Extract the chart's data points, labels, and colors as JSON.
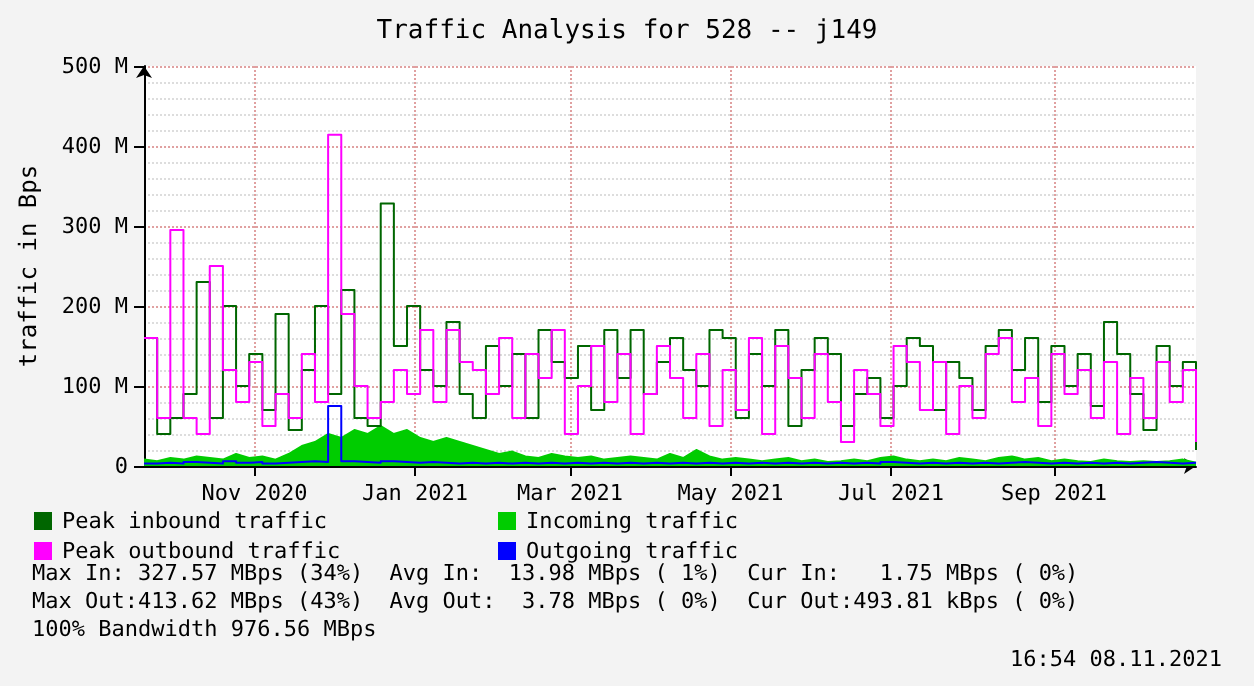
{
  "chart_data": {
    "type": "step",
    "title": "Traffic Analysis for 528 -- j149",
    "ylabel": "traffic in Bps",
    "x": [
      "2020-10-04",
      "2020-10-09",
      "2020-10-14",
      "2020-10-19",
      "2020-10-24",
      "2020-10-29",
      "2020-11-03",
      "2020-11-08",
      "2020-11-13",
      "2020-11-18",
      "2020-11-23",
      "2020-11-28",
      "2020-12-03",
      "2020-12-08",
      "2020-12-13",
      "2020-12-18",
      "2020-12-23",
      "2020-12-28",
      "2021-01-02",
      "2021-01-07",
      "2021-01-12",
      "2021-01-17",
      "2021-01-22",
      "2021-01-27",
      "2021-02-01",
      "2021-02-06",
      "2021-02-11",
      "2021-02-16",
      "2021-02-21",
      "2021-02-26",
      "2021-03-03",
      "2021-03-08",
      "2021-03-13",
      "2021-03-18",
      "2021-03-23",
      "2021-03-28",
      "2021-04-02",
      "2021-04-07",
      "2021-04-12",
      "2021-04-17",
      "2021-04-22",
      "2021-04-27",
      "2021-05-02",
      "2021-05-07",
      "2021-05-12",
      "2021-05-17",
      "2021-05-22",
      "2021-05-27",
      "2021-06-01",
      "2021-06-06",
      "2021-06-11",
      "2021-06-16",
      "2021-06-21",
      "2021-06-26",
      "2021-07-01",
      "2021-07-06",
      "2021-07-11",
      "2021-07-16",
      "2021-07-21",
      "2021-07-26",
      "2021-07-31",
      "2021-08-05",
      "2021-08-10",
      "2021-08-15",
      "2021-08-20",
      "2021-08-25",
      "2021-08-30",
      "2021-09-04",
      "2021-09-09",
      "2021-09-14",
      "2021-09-19",
      "2021-09-24",
      "2021-09-29",
      "2021-10-04",
      "2021-10-09",
      "2021-10-14",
      "2021-10-19",
      "2021-10-24",
      "2021-10-29",
      "2021-11-03",
      "2021-11-08"
    ],
    "series": [
      {
        "name": "Peak inbound traffic",
        "color": "#006600",
        "values": [
          160,
          40,
          60,
          90,
          230,
          60,
          200,
          100,
          140,
          70,
          190,
          45,
          120,
          200,
          90,
          220,
          60,
          50,
          328,
          150,
          200,
          120,
          100,
          180,
          90,
          60,
          150,
          100,
          140,
          60,
          170,
          130,
          110,
          150,
          70,
          170,
          110,
          170,
          90,
          130,
          160,
          120,
          100,
          170,
          160,
          60,
          140,
          100,
          170,
          50,
          120,
          160,
          140,
          50,
          90,
          110,
          60,
          100,
          160,
          150,
          70,
          130,
          110,
          70,
          150,
          170,
          120,
          160,
          80,
          150,
          100,
          140,
          75,
          180,
          140,
          90,
          45,
          150,
          100,
          130,
          20
        ]
      },
      {
        "name": "Incoming traffic",
        "color": "#00cc00",
        "type": "area",
        "values": [
          8,
          6,
          10,
          8,
          12,
          10,
          8,
          15,
          10,
          12,
          8,
          15,
          25,
          30,
          40,
          35,
          45,
          40,
          50,
          40,
          45,
          35,
          30,
          35,
          30,
          25,
          20,
          15,
          18,
          12,
          10,
          15,
          12,
          10,
          12,
          8,
          10,
          12,
          10,
          8,
          15,
          10,
          20,
          12,
          8,
          10,
          8,
          6,
          8,
          10,
          6,
          8,
          5,
          6,
          8,
          6,
          10,
          12,
          8,
          6,
          8,
          6,
          10,
          8,
          6,
          10,
          12,
          8,
          10,
          6,
          8,
          6,
          5,
          8,
          6,
          5,
          6,
          5,
          6,
          8,
          4
        ]
      },
      {
        "name": "Peak outbound traffic",
        "color": "#ff00ff",
        "values": [
          160,
          60,
          295,
          60,
          40,
          250,
          120,
          80,
          130,
          50,
          90,
          60,
          140,
          80,
          414,
          190,
          100,
          60,
          80,
          120,
          90,
          170,
          80,
          170,
          130,
          120,
          90,
          160,
          60,
          140,
          110,
          170,
          40,
          100,
          150,
          80,
          140,
          40,
          90,
          150,
          110,
          60,
          140,
          50,
          120,
          70,
          160,
          40,
          150,
          110,
          60,
          140,
          80,
          30,
          120,
          90,
          50,
          150,
          130,
          70,
          130,
          40,
          100,
          60,
          140,
          160,
          80,
          110,
          50,
          140,
          90,
          120,
          60,
          130,
          40,
          110,
          60,
          130,
          80,
          120,
          30
        ]
      },
      {
        "name": "Outgoing traffic",
        "color": "#0000ff",
        "values": [
          3,
          4,
          3,
          5,
          4,
          3,
          6,
          4,
          5,
          3,
          4,
          5,
          6,
          5,
          75,
          6,
          5,
          4,
          6,
          5,
          4,
          5,
          4,
          3,
          4,
          3,
          4,
          3,
          4,
          3,
          4,
          3,
          4,
          3,
          4,
          3,
          4,
          3,
          4,
          3,
          4,
          3,
          4,
          3,
          4,
          3,
          4,
          3,
          4,
          3,
          4,
          3,
          4,
          3,
          4,
          3,
          5,
          4,
          3,
          4,
          3,
          4,
          3,
          4,
          3,
          4,
          5,
          4,
          3,
          4,
          3,
          4,
          3,
          4,
          3,
          4,
          5,
          4,
          3,
          4,
          3
        ]
      }
    ],
    "xlim": [
      "2020-10-04",
      "2021-11-08"
    ],
    "xticks": [
      {
        "value": "2020-11-15",
        "label": "Nov 2020"
      },
      {
        "value": "2021-01-15",
        "label": "Jan 2021"
      },
      {
        "value": "2021-03-15",
        "label": "Mar 2021"
      },
      {
        "value": "2021-05-15",
        "label": "May 2021"
      },
      {
        "value": "2021-07-15",
        "label": "Jul 2021"
      },
      {
        "value": "2021-09-15",
        "label": "Sep 2021"
      }
    ],
    "ylim": [
      0,
      500
    ],
    "yticks": [
      0,
      {
        "value": 100,
        "label": "100 M"
      },
      {
        "value": 200,
        "label": "200 M"
      },
      {
        "value": 300,
        "label": "300 M"
      },
      {
        "value": 400,
        "label": "400 M"
      },
      {
        "value": 500,
        "label": "500 M"
      }
    ],
    "grid": true,
    "legend": "bottom left",
    "marker": "none",
    "line_style": "solid",
    "annotations": [
      "Max In: 327.57 MBps (34%)  Avg In:  13.98 MBps ( 1%)  Cur In:   1.75 MBps ( 0%)",
      "Max Out:413.62 MBps (43%)  Avg Out:  3.78 MBps ( 0%)  Cur Out:493.81 kBps ( 0%)",
      "100% Bandwidth 976.56 MBps",
      "16:54 08.11.2021"
    ]
  }
}
